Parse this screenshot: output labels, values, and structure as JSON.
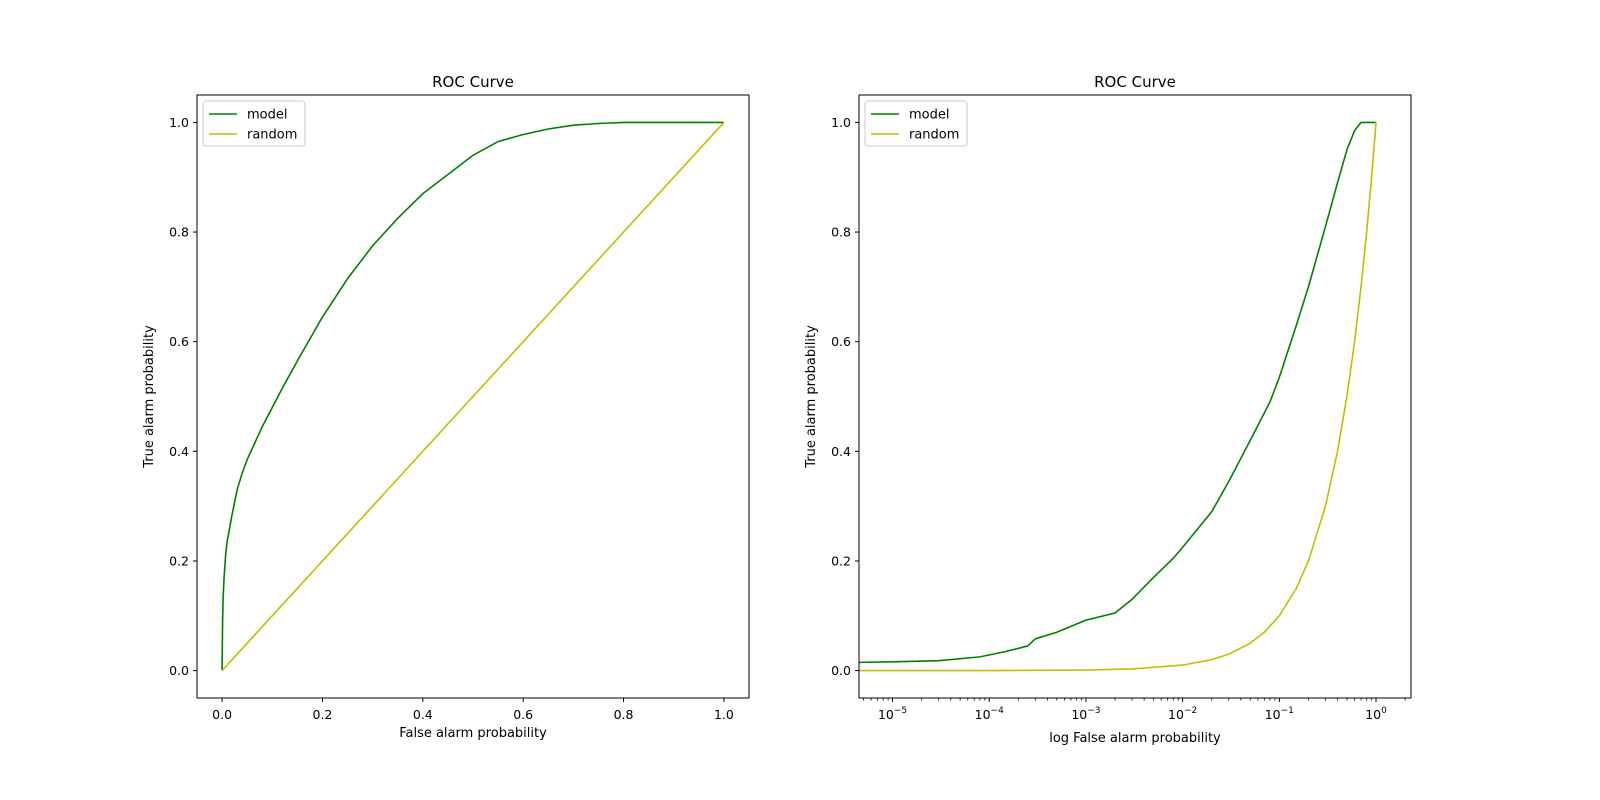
{
  "chart_data": [
    {
      "type": "line",
      "title": "ROC Curve",
      "xlabel": "False alarm probability",
      "ylabel": "True alarm probability",
      "xscale": "linear",
      "xlim": [
        -0.05,
        1.05
      ],
      "ylim": [
        -0.05,
        1.05
      ],
      "x_ticks": [
        0.0,
        0.2,
        0.4,
        0.6,
        0.8,
        1.0
      ],
      "x_tick_labels": [
        "0.0",
        "0.2",
        "0.4",
        "0.6",
        "0.8",
        "1.0"
      ],
      "y_ticks": [
        0.0,
        0.2,
        0.4,
        0.6,
        0.8,
        1.0
      ],
      "y_tick_labels": [
        "0.0",
        "0.2",
        "0.4",
        "0.6",
        "0.8",
        "1.0"
      ],
      "grid": false,
      "legend_position": "top-left",
      "series": [
        {
          "name": "model",
          "color": "#008000",
          "x": [
            0,
            0.0005,
            0.001,
            0.002,
            0.004,
            0.007,
            0.01,
            0.015,
            0.02,
            0.03,
            0.04,
            0.05,
            0.06,
            0.08,
            0.1,
            0.12,
            0.15,
            0.2,
            0.25,
            0.3,
            0.35,
            0.4,
            0.45,
            0.5,
            0.55,
            0.6,
            0.65,
            0.7,
            0.75,
            0.8,
            0.85,
            0.9,
            0.95,
            1.0
          ],
          "y": [
            0,
            0.05,
            0.09,
            0.13,
            0.17,
            0.21,
            0.235,
            0.26,
            0.285,
            0.33,
            0.36,
            0.385,
            0.405,
            0.445,
            0.48,
            0.515,
            0.565,
            0.645,
            0.715,
            0.775,
            0.825,
            0.87,
            0.905,
            0.94,
            0.965,
            0.978,
            0.988,
            0.995,
            0.998,
            1.0,
            1.0,
            1.0,
            1.0,
            1.0
          ]
        },
        {
          "name": "random",
          "color": "#bfbf00",
          "x": [
            0,
            1
          ],
          "y": [
            0,
            1
          ]
        }
      ]
    },
    {
      "type": "line",
      "title": "ROC Curve",
      "xlabel": "log False alarm probability",
      "ylabel": "True alarm probability",
      "xscale": "log",
      "xlim": [
        4.5e-06,
        2.3
      ],
      "ylim": [
        -0.05,
        1.05
      ],
      "x_ticks": [
        1e-05,
        0.0001,
        0.001,
        0.01,
        0.1,
        1
      ],
      "x_tick_labels": [
        {
          "base": "10",
          "exp": "−5"
        },
        {
          "base": "10",
          "exp": "−4"
        },
        {
          "base": "10",
          "exp": "−3"
        },
        {
          "base": "10",
          "exp": "−2"
        },
        {
          "base": "10",
          "exp": "−1"
        },
        {
          "base": "10",
          "exp": "0"
        }
      ],
      "y_ticks": [
        0.0,
        0.2,
        0.4,
        0.6,
        0.8,
        1.0
      ],
      "y_tick_labels": [
        "0.0",
        "0.2",
        "0.4",
        "0.6",
        "0.8",
        "1.0"
      ],
      "grid": false,
      "legend_position": "top-left",
      "series": [
        {
          "name": "model",
          "color": "#008000",
          "x": [
            4.5e-06,
            1e-05,
            3e-05,
            8e-05,
            0.00015,
            0.00025,
            0.0003,
            0.0005,
            0.0008,
            0.001,
            0.002,
            0.003,
            0.005,
            0.008,
            0.01,
            0.02,
            0.03,
            0.05,
            0.08,
            0.1,
            0.15,
            0.2,
            0.3,
            0.4,
            0.5,
            0.6,
            0.7,
            0.8,
            1.0
          ],
          "y": [
            0.015,
            0.016,
            0.018,
            0.025,
            0.035,
            0.045,
            0.058,
            0.07,
            0.085,
            0.092,
            0.105,
            0.13,
            0.17,
            0.205,
            0.225,
            0.29,
            0.345,
            0.42,
            0.49,
            0.535,
            0.63,
            0.7,
            0.81,
            0.89,
            0.95,
            0.985,
            1.0,
            1.0,
            1.0
          ]
        },
        {
          "name": "random",
          "color": "#bfbf00",
          "x": [
            4.5e-06,
            1e-05,
            0.0001,
            0.001,
            0.003,
            0.01,
            0.02,
            0.03,
            0.05,
            0.07,
            0.1,
            0.15,
            0.2,
            0.3,
            0.4,
            0.5,
            0.6,
            0.7,
            0.8,
            0.9,
            1.0
          ],
          "y": [
            4.5e-06,
            1e-05,
            0.0001,
            0.001,
            0.003,
            0.01,
            0.02,
            0.03,
            0.05,
            0.07,
            0.1,
            0.15,
            0.2,
            0.3,
            0.4,
            0.5,
            0.6,
            0.7,
            0.8,
            0.9,
            1.0
          ]
        }
      ]
    }
  ]
}
